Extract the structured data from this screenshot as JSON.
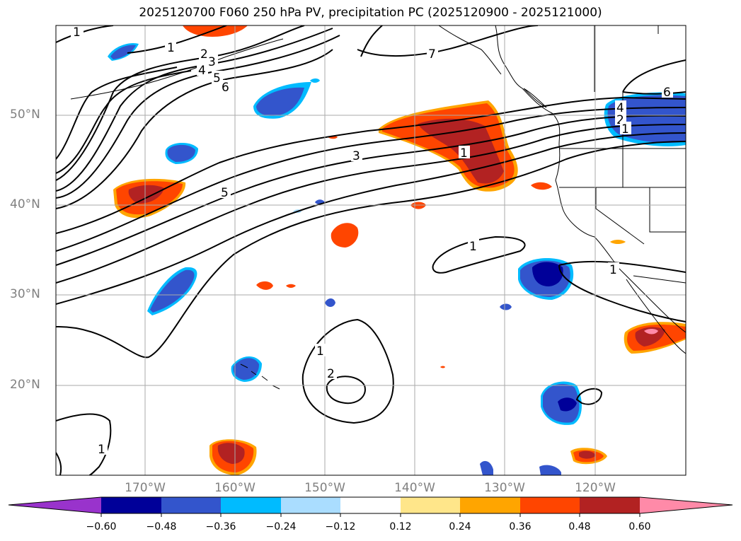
{
  "title": "2025120700 F060 250 hPa PV, precipitation PC (2025120900 - 2025121000)",
  "axes": {
    "lat_labels": [
      "50°N",
      "40°N",
      "30°N",
      "20°N"
    ],
    "lon_labels": [
      "170°W",
      "160°W",
      "150°W",
      "140°W",
      "130°W",
      "120°W"
    ]
  },
  "colorbar": {
    "ticks": [
      "−0.60",
      "−0.48",
      "−0.36",
      "−0.24",
      "−0.12",
      "0.12",
      "0.24",
      "0.36",
      "0.48",
      "0.60"
    ],
    "colors": [
      "#9933cc",
      "#000099",
      "#3355cc",
      "#00bbff",
      "#aaddff",
      "#ffffff",
      "#ffe68a",
      "#ffa500",
      "#ff4500",
      "#b22222",
      "#ff8aa8"
    ]
  },
  "contour_labels": [
    "1",
    "1",
    "2",
    "3",
    "4",
    "5",
    "6",
    "7",
    "3",
    "5",
    "1",
    "6",
    "4",
    "2",
    "1",
    "1",
    "1",
    "1",
    "2",
    "1"
  ],
  "colors": {
    "positive_strong": "#b22222",
    "positive_mid": "#ff4500",
    "positive_weak": "#ffa500",
    "negative_strong": "#000099",
    "negative_mid": "#3355cc",
    "negative_weak": "#00bbff"
  }
}
